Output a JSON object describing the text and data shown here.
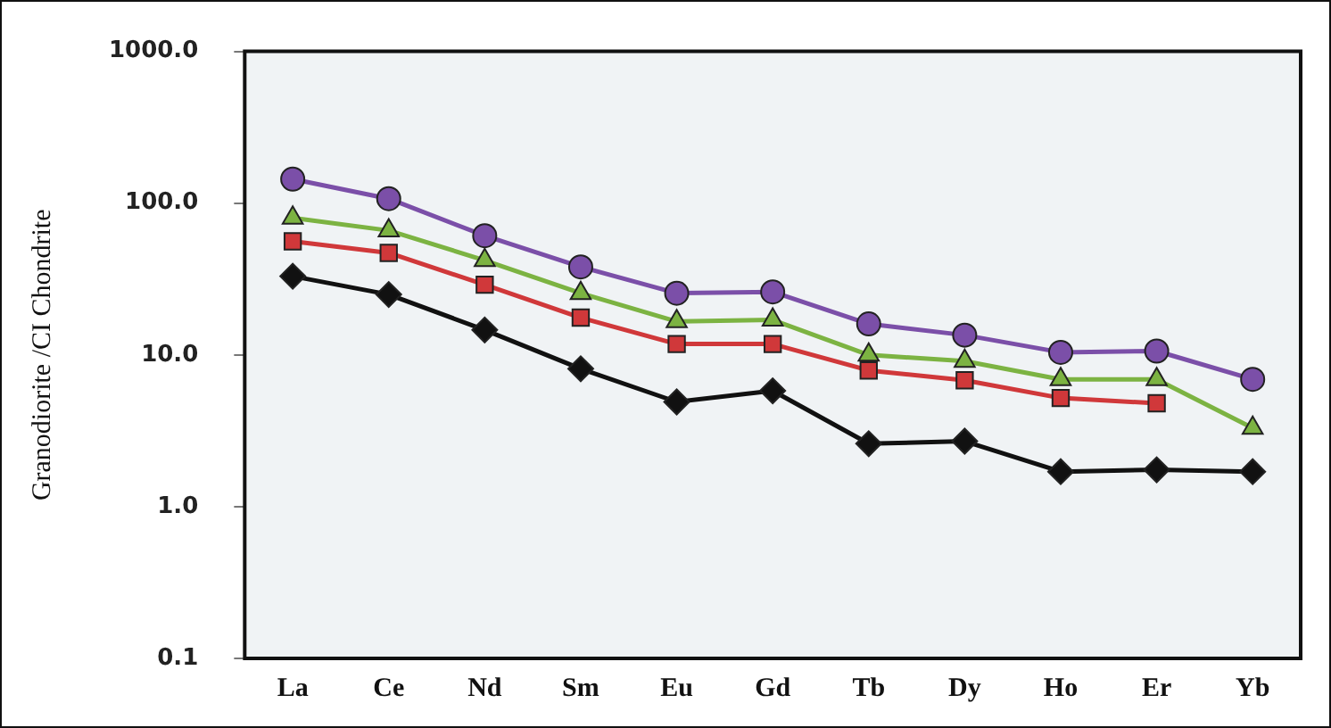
{
  "chart_data": {
    "type": "line",
    "ylabel": "Granodiorite /CI Chondrite",
    "categories": [
      "La",
      "Ce",
      "Nd",
      "Sm",
      "Eu",
      "Gd",
      "Tb",
      "Dy",
      "Ho",
      "Er",
      "Yb"
    ],
    "log": "y",
    "ylim": [
      0.1,
      1000
    ],
    "yticks": [
      {
        "value": 0.1,
        "label": "0.1"
      },
      {
        "value": 1,
        "label": "1.0"
      },
      {
        "value": 10,
        "label": "10.0"
      },
      {
        "value": 100,
        "label": "100.0"
      },
      {
        "value": 1000,
        "label": "1000.0"
      }
    ],
    "grid": false,
    "legend": false,
    "line_style": "solid",
    "series": [
      {
        "color": "#7b4fa8",
        "marker": "circle",
        "values": [
          144,
          107,
          61,
          38,
          25.5,
          26,
          16,
          13.5,
          10.4,
          10.6,
          6.9
        ]
      },
      {
        "color": "#7cb342",
        "marker": "triangle",
        "values": [
          80,
          66,
          42,
          25.5,
          16.6,
          17,
          10,
          9.1,
          6.9,
          6.9,
          3.3
        ]
      },
      {
        "color": "#d0383a",
        "marker": "square",
        "values": [
          56,
          47,
          29,
          17.6,
          11.8,
          11.8,
          7.9,
          6.8,
          5.2,
          4.8,
          null
        ]
      },
      {
        "color": "#111111",
        "marker": "diamond",
        "values": [
          33,
          25,
          14.6,
          8.1,
          4.9,
          5.8,
          2.6,
          2.7,
          1.7,
          1.75,
          1.7
        ]
      }
    ]
  }
}
